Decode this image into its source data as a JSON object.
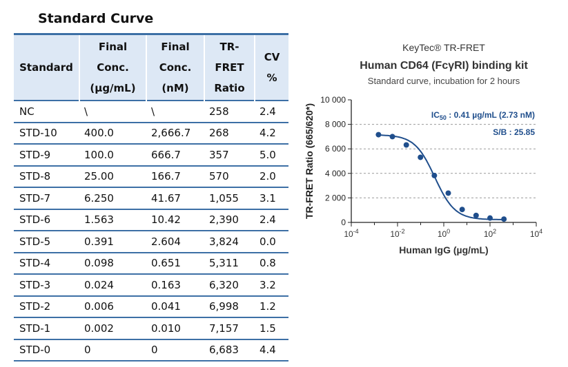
{
  "title": "Standard Curve",
  "table": {
    "headers": [
      [
        "Standard"
      ],
      [
        "Final",
        "Conc.",
        "(µg/mL)"
      ],
      [
        "Final",
        "Conc.",
        "(nM)"
      ],
      [
        "TR-",
        "FRET",
        "Ratio"
      ],
      [
        "CV",
        "%"
      ]
    ],
    "rows": [
      [
        "NC",
        "\\",
        "\\",
        "258",
        "2.4"
      ],
      [
        "STD-10",
        "400.0",
        "2,666.7",
        "268",
        "4.2"
      ],
      [
        "STD-9",
        "100.0",
        "666.7",
        "357",
        "5.0"
      ],
      [
        "STD-8",
        "25.00",
        "166.7",
        "570",
        "2.0"
      ],
      [
        "STD-7",
        "6.250",
        "41.67",
        "1,055",
        "3.1"
      ],
      [
        "STD-6",
        "1.563",
        "10.42",
        "2,390",
        "2.4"
      ],
      [
        "STD-5",
        "0.391",
        "2.604",
        "3,824",
        "0.0"
      ],
      [
        "STD-4",
        "0.098",
        "0.651",
        "5,311",
        "0.8"
      ],
      [
        "STD-3",
        "0.024",
        "0.163",
        "6,320",
        "3.2"
      ],
      [
        "STD-2",
        "0.006",
        "0.041",
        "6,998",
        "1.2"
      ],
      [
        "STD-1",
        "0.002",
        "0.010",
        "7,157",
        "1.5"
      ],
      [
        "STD-0",
        "0",
        "0",
        "6,683",
        "4.4"
      ]
    ]
  },
  "chart_data": {
    "type": "scatter",
    "title_line1": "KeyTec® TR-FRET",
    "title_line2": "Human CD64 (FcγRI) binding kit",
    "subtitle": "Standard curve,  incubation for 2 hours",
    "xlabel": "Human IgG  (µg/mL)",
    "ylabel": "TR-FRET Ratio (665/620*)",
    "xscale": "log",
    "xlim": [
      0.0001,
      10000
    ],
    "ylim": [
      0,
      10000
    ],
    "xticks": [
      "10-4",
      "10-2",
      "100",
      "102",
      "104"
    ],
    "yticks": [
      "0",
      "2 000",
      "4 000",
      "6 000",
      "8 000",
      "10 000"
    ],
    "x": [
      0.0015,
      0.006,
      0.024,
      0.098,
      0.391,
      1.563,
      6.25,
      25,
      100,
      400
    ],
    "y": [
      7157,
      6998,
      6320,
      5311,
      3824,
      2390,
      1055,
      570,
      357,
      268
    ],
    "annotation_ic50": "IC50 : 0.41 µg/mL (2.73 nM)",
    "annotation_sb": "S/B : 25.85",
    "color": "#1f4e8c"
  }
}
